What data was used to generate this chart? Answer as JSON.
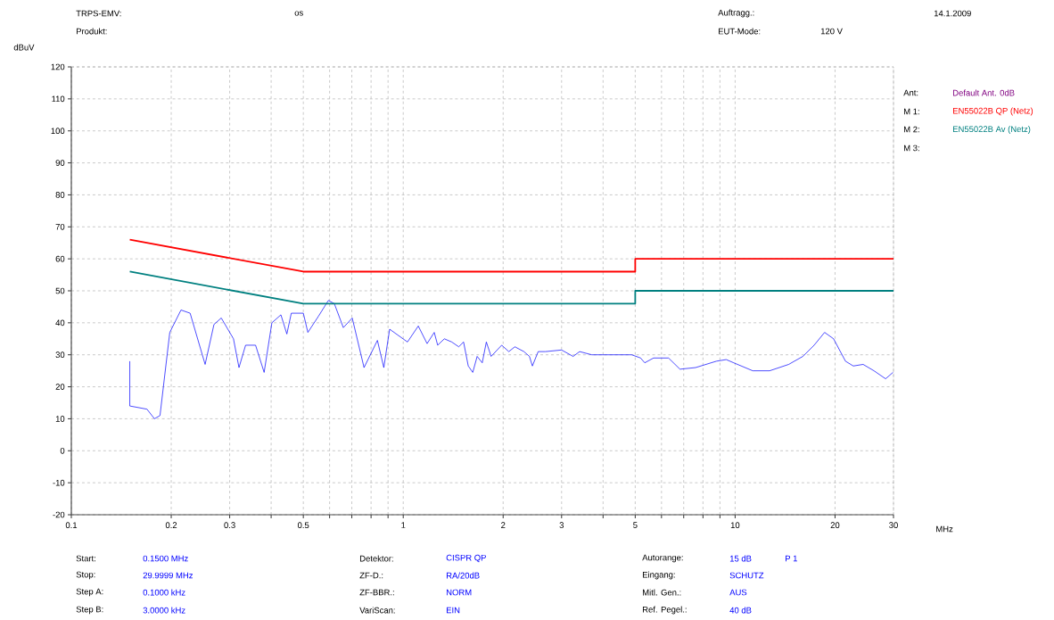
{
  "chart_data": {
    "type": "line",
    "xlabel": "MHz",
    "ylabel": "dBuV",
    "log": "x",
    "grid": true,
    "legend": "right",
    "xlim": [
      0.1,
      30
    ],
    "ylim": [
      -20,
      120
    ],
    "xticks": [
      0.1,
      0.2,
      0.3,
      {
        "value": 0.4,
        "label": null
      },
      0.5,
      {
        "value": 0.6,
        "label": null
      },
      {
        "value": 0.7,
        "label": null
      },
      {
        "value": 0.8,
        "label": null
      },
      {
        "value": 0.9,
        "label": null
      },
      1,
      2,
      3,
      {
        "value": 4,
        "label": null
      },
      5,
      {
        "value": 6,
        "label": null
      },
      {
        "value": 7,
        "label": null
      },
      {
        "value": 8,
        "label": null
      },
      {
        "value": 9,
        "label": null
      },
      10,
      20,
      30
    ],
    "yticks": [
      -20,
      -10,
      0,
      10,
      20,
      30,
      40,
      50,
      60,
      70,
      80,
      90,
      100,
      110,
      120
    ],
    "series": [
      {
        "color": "#0000ff",
        "x": [
          0.15,
          0.15,
          0.169,
          0.178,
          0.185,
          0.198,
          0.214,
          0.228,
          0.253,
          0.269,
          0.283,
          0.308,
          0.32,
          0.335,
          0.359,
          0.381,
          0.402,
          0.428,
          0.446,
          0.46,
          0.5,
          0.516,
          0.555,
          0.595,
          0.62,
          0.66,
          0.702,
          0.762,
          0.836,
          0.874,
          0.91,
          1.03,
          1.11,
          1.18,
          1.24,
          1.27,
          1.33,
          1.4,
          1.47,
          1.52,
          1.57,
          1.62,
          1.67,
          1.73,
          1.78,
          1.84,
          1.98,
          2.08,
          2.17,
          2.31,
          2.4,
          2.45,
          2.55,
          2.68,
          3.0,
          3.25,
          3.4,
          3.7,
          4.17,
          4.88,
          5.19,
          5.34,
          5.68,
          6.3,
          6.82,
          7.6,
          8.78,
          9.4,
          9.9,
          11.3,
          12.7,
          14.5,
          16.0,
          17.3,
          18.6,
          19.8,
          21.5,
          22.7,
          24.3,
          26.2,
          28.4,
          29.9
        ],
        "values": [
          28,
          14,
          13,
          10,
          11,
          37,
          44,
          43,
          27,
          39.5,
          41.5,
          35,
          26,
          33,
          33,
          24.5,
          40,
          42.5,
          36.5,
          43,
          43,
          37,
          42,
          47,
          46,
          38.5,
          41.5,
          26,
          34.5,
          26,
          38,
          34,
          39,
          33.5,
          37,
          33,
          35,
          34,
          32.5,
          34,
          26.5,
          24.5,
          29.5,
          27.5,
          34,
          29.5,
          33,
          31,
          32.5,
          31,
          29.5,
          26.5,
          31,
          31,
          31.5,
          29.5,
          31,
          30,
          30,
          30,
          29,
          27.5,
          29,
          29,
          25.5,
          26,
          28,
          28.5,
          27.5,
          25,
          25,
          27,
          29.5,
          33,
          37,
          35,
          28,
          26.5,
          27,
          25,
          22.5,
          24.5
        ]
      },
      {
        "name": "EN55022B QP (Netz)",
        "color": "#ff0000",
        "x": [
          0.15,
          0.5,
          5,
          5,
          30
        ],
        "values": [
          66,
          56,
          56,
          60,
          60
        ]
      },
      {
        "name": "EN55022B Av (Netz)",
        "color": "#008080",
        "x": [
          0.15,
          0.5,
          5,
          5,
          30
        ],
        "values": [
          56,
          46,
          46,
          50,
          50
        ]
      }
    ],
    "annotations": [
      "TRPS-EMV:",
      "os",
      "Produkt:",
      "Auftragg.:",
      "EUT-Mode:",
      "120 V",
      "14.1.2009",
      "Ant:",
      "Default Ant. 0dB",
      "M 1:",
      "M 2:",
      "M 3:",
      "Start:",
      "0.1500 MHz",
      "Stop:",
      "29.9999 MHz",
      "Step A:",
      "0.1000 kHz",
      "Step B:",
      "3.0000 kHz",
      "Detektor:",
      "CISPR QP",
      "ZF-D.:",
      "RA/20dB",
      "ZF-BBR.:",
      "NORM",
      "VariScan:",
      "EIN",
      "Autorange:",
      "15 dB",
      "P 1",
      "Eingang:",
      "SCHUTZ",
      "Mitl. Gen.:",
      "AUS",
      "Ref. Pegel.:",
      "40 dB"
    ]
  }
}
